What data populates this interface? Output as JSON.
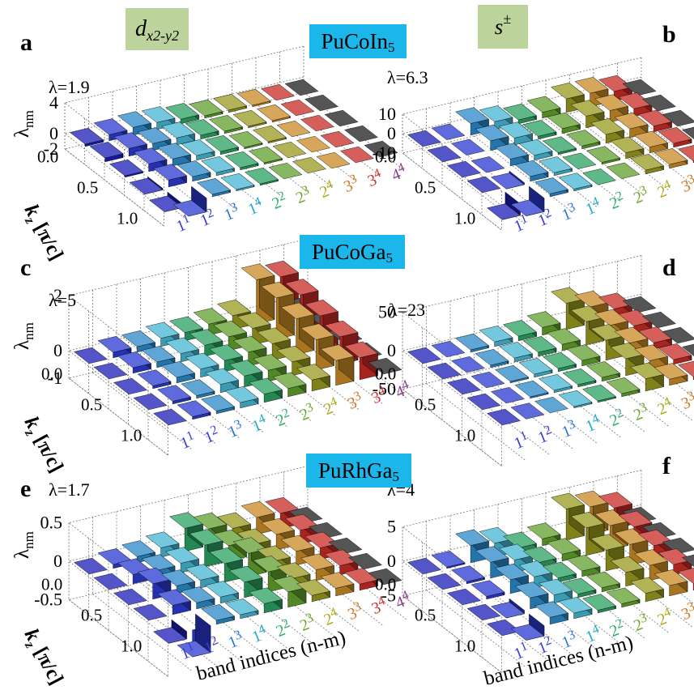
{
  "headers": {
    "dwave": {
      "main": "d",
      "sub": "x2-y2"
    },
    "spm": {
      "main": "s",
      "sup": "±"
    }
  },
  "material_labels": [
    {
      "base": "PuCoIn",
      "sub": "5"
    },
    {
      "base": "PuCoGa",
      "sub": "5"
    },
    {
      "base": "PuRhGa",
      "sub": "5"
    }
  ],
  "axis_labels": {
    "z_main": "λ",
    "z_sub": "nm",
    "kz_main": "k",
    "kz_sub": "z",
    "kz_unit": " [π/c]",
    "band": "band indices (n-m)"
  },
  "kz_ticks": [
    "0.0",
    "0.5",
    "1.0"
  ],
  "band_labels": [
    {
      "n": "1",
      "m": "1",
      "color": "#3a3ad8"
    },
    {
      "n": "1",
      "m": "2",
      "color": "#3a3ad8"
    },
    {
      "n": "1",
      "m": "3",
      "color": "#2a76d4"
    },
    {
      "n": "1",
      "m": "4",
      "color": "#22a8c8"
    },
    {
      "n": "2",
      "m": "2",
      "color": "#2aae6a"
    },
    {
      "n": "2",
      "m": "3",
      "color": "#6aa82a"
    },
    {
      "n": "2",
      "m": "4",
      "color": "#b0a820"
    },
    {
      "n": "3",
      "m": "3",
      "color": "#d07a28"
    },
    {
      "n": "3",
      "m": "4",
      "color": "#d03434"
    },
    {
      "n": "4",
      "m": "4",
      "color": "#8a3a8a"
    }
  ],
  "colors": {
    "band_bar": [
      "#1c1cb8",
      "#2a3ad0",
      "#2a88c8",
      "#46b6d2",
      "#2aa060",
      "#5fa02c",
      "#98981e",
      "#c88a24",
      "#c62a24",
      "#1c1c1c"
    ],
    "tag_green": "#bcd39b",
    "tag_blue": "#1cb7ea"
  },
  "chart_data": [
    {
      "type": "bar3d",
      "panel": "a",
      "lambda_label": "λ=1.9",
      "z_ticks": [
        "4",
        "0",
        "-2"
      ],
      "zlim": [
        -2,
        4
      ],
      "show_band_labels": true,
      "rows_kz": [
        0.0,
        0.25,
        0.5,
        0.75,
        1.0
      ],
      "values": [
        [
          0.3,
          0.8,
          1.0,
          0.9,
          0.6,
          0.3,
          0.3,
          0.2,
          0.1,
          0.0
        ],
        [
          0.5,
          1.0,
          0.9,
          0.9,
          0.5,
          0.3,
          0.2,
          0.2,
          0.1,
          0.0
        ],
        [
          0.2,
          1.0,
          0.9,
          0.6,
          0.4,
          0.2,
          0.2,
          0.1,
          0.1,
          0.0
        ],
        [
          -0.2,
          0.9,
          0.6,
          0.4,
          0.3,
          0.2,
          0.1,
          0.1,
          0.0,
          0.0
        ],
        [
          -0.5,
          -1.8,
          0.3,
          0.2,
          0.2,
          0.1,
          0.1,
          0.0,
          0.0,
          0.0
        ]
      ]
    },
    {
      "type": "bar3d",
      "panel": "b",
      "lambda_label": "λ=6.3",
      "z_ticks": [
        "10",
        "0",
        "-10"
      ],
      "zlim": [
        -10,
        10
      ],
      "show_band_labels": true,
      "rows_kz": [
        0.0,
        0.25,
        0.5,
        0.75,
        1.0
      ],
      "values": [
        [
          0.0,
          0.5,
          6.0,
          4.0,
          2.0,
          3.0,
          7.0,
          7.0,
          5.0,
          0.0
        ],
        [
          0.0,
          0.5,
          5.0,
          3.5,
          1.5,
          2.5,
          6.0,
          6.0,
          4.0,
          0.0
        ],
        [
          0.0,
          -0.5,
          3.5,
          2.5,
          1.0,
          1.5,
          4.5,
          4.5,
          3.0,
          0.0
        ],
        [
          0.0,
          -1.0,
          2.5,
          1.5,
          0.5,
          1.0,
          3.0,
          3.0,
          2.0,
          0.0
        ],
        [
          -6.0,
          -7.0,
          1.5,
          1.0,
          0.3,
          0.5,
          2.0,
          2.0,
          1.0,
          0.0
        ]
      ]
    },
    {
      "type": "bar3d",
      "panel": "c",
      "lambda_label": "λ=5",
      "z_ticks": [
        "2",
        "0",
        "-1"
      ],
      "zlim": [
        -1,
        2
      ],
      "show_band_labels": true,
      "rows_kz": [
        0.0,
        0.25,
        0.5,
        0.75,
        1.0
      ],
      "values": [
        [
          0.0,
          0.2,
          0.2,
          0.3,
          0.3,
          0.4,
          0.5,
          1.6,
          1.5,
          0.0
        ],
        [
          0.0,
          0.2,
          0.2,
          0.3,
          0.4,
          0.5,
          0.6,
          1.5,
          1.4,
          0.0
        ],
        [
          0.0,
          0.1,
          0.2,
          0.3,
          0.4,
          0.5,
          0.6,
          1.3,
          1.2,
          0.0
        ],
        [
          0.0,
          0.1,
          0.1,
          0.3,
          0.4,
          0.4,
          0.5,
          1.1,
          1.0,
          0.0
        ],
        [
          0.0,
          0.1,
          0.1,
          0.2,
          0.3,
          0.3,
          0.4,
          0.9,
          0.8,
          0.0
        ]
      ]
    },
    {
      "type": "bar3d",
      "panel": "d",
      "lambda_label": "λ=23",
      "z_ticks": [
        "50",
        "0",
        "-50"
      ],
      "zlim": [
        -50,
        50
      ],
      "show_band_labels": true,
      "rows_kz": [
        0.0,
        0.25,
        0.5,
        0.75,
        1.0
      ],
      "values": [
        [
          0.0,
          1.0,
          3.0,
          6.0,
          6.0,
          10.0,
          34.0,
          22.0,
          12.0,
          0.0
        ],
        [
          0.0,
          1.0,
          3.0,
          5.0,
          5.0,
          8.0,
          30.0,
          18.0,
          10.0,
          0.0
        ],
        [
          0.0,
          1.0,
          2.0,
          4.0,
          4.0,
          7.0,
          26.0,
          15.0,
          8.0,
          0.0
        ],
        [
          0.0,
          1.0,
          2.0,
          3.0,
          3.0,
          5.0,
          22.0,
          12.0,
          6.0,
          0.0
        ],
        [
          0.0,
          0.5,
          1.0,
          2.0,
          2.0,
          4.0,
          16.0,
          8.0,
          4.0,
          0.0
        ]
      ]
    },
    {
      "type": "bar3d",
      "panel": "e",
      "lambda_label": "λ=1.7",
      "z_ticks": [
        "0.5",
        "0",
        "-0.5"
      ],
      "zlim": [
        -0.5,
        0.5
      ],
      "show_band_labels": true,
      "rows_kz": [
        0.0,
        0.25,
        0.5,
        0.75,
        1.0
      ],
      "values": [
        [
          0.0,
          0.05,
          0.08,
          0.12,
          0.3,
          0.22,
          0.15,
          0.22,
          0.2,
          0.0
        ],
        [
          0.0,
          0.12,
          0.1,
          0.12,
          0.28,
          0.2,
          0.14,
          0.2,
          0.18,
          0.0
        ],
        [
          0.0,
          0.2,
          0.1,
          0.1,
          0.24,
          0.3,
          0.12,
          0.18,
          0.15,
          0.0
        ],
        [
          0.0,
          0.12,
          0.08,
          0.08,
          0.2,
          0.26,
          0.1,
          0.14,
          0.12,
          0.0
        ],
        [
          -0.1,
          -0.35,
          0.05,
          0.05,
          0.12,
          0.2,
          0.08,
          0.1,
          0.08,
          0.0
        ]
      ]
    },
    {
      "type": "bar3d",
      "panel": "f",
      "lambda_label": "λ=4",
      "z_ticks": [
        "5",
        "0",
        "-5"
      ],
      "zlim": [
        -5,
        5
      ],
      "show_band_labels": true,
      "rows_kz": [
        0.0,
        0.25,
        0.5,
        0.75,
        1.0
      ],
      "values": [
        [
          0.0,
          0.2,
          2.5,
          2.0,
          0.5,
          1.0,
          4.5,
          4.0,
          3.0,
          0.0
        ],
        [
          0.0,
          0.3,
          2.3,
          1.8,
          0.6,
          1.0,
          4.0,
          3.5,
          2.5,
          0.0
        ],
        [
          0.0,
          0.4,
          2.0,
          1.6,
          0.6,
          0.8,
          3.0,
          3.0,
          2.0,
          0.0
        ],
        [
          0.0,
          -0.5,
          1.6,
          1.2,
          0.5,
          0.6,
          2.0,
          2.2,
          1.5,
          0.0
        ],
        [
          0.0,
          -1.5,
          1.0,
          0.8,
          0.4,
          0.5,
          1.2,
          1.5,
          1.0,
          0.0
        ]
      ]
    }
  ]
}
